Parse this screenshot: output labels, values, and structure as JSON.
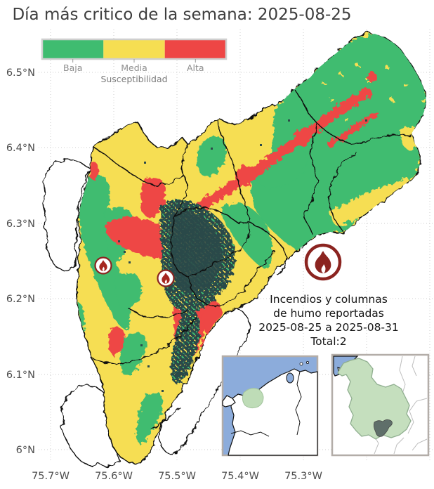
{
  "title": "Día más critico de la semana: 2025-08-25",
  "legend": {
    "title": "Susceptibilidad",
    "labels": [
      "Baja",
      "Media",
      "Alta"
    ],
    "colors": {
      "baja": "#3fbc70",
      "media": "#f6de52",
      "alta": "#ee4645"
    }
  },
  "axes": {
    "yticks": [
      "6.5°N",
      "6.4°N",
      "6.3°N",
      "6.2°N",
      "6.1°N",
      "6°N"
    ],
    "xticks": [
      "75.7°W",
      "75.6°W",
      "75.5°W",
      "75.4°W",
      "75.3°W"
    ]
  },
  "annotation": {
    "line1": "Incendios y columnas",
    "line2": "de humo reportadas",
    "line3": "2025-08-25 a 2025-08-31",
    "line4": "Total:2",
    "total_fires": 2
  },
  "map": {
    "urban_color": "#2c4a4a",
    "border_color": "#111111",
    "fire_badge_color": "#8b2420",
    "fire_markers": [
      {
        "x": 147,
        "y": 378
      },
      {
        "x": 236,
        "y": 396
      }
    ]
  },
  "insets": [
    {
      "name": "colombia-locator",
      "ocean": "#8cacdb",
      "land": "#ffffff",
      "highlight": "#bedcb7"
    },
    {
      "name": "antioquia-locator",
      "region_fill": "#c5dfbe",
      "study_area": "#5f6f6a",
      "neighbor_border": "#bdbdbd"
    }
  ]
}
